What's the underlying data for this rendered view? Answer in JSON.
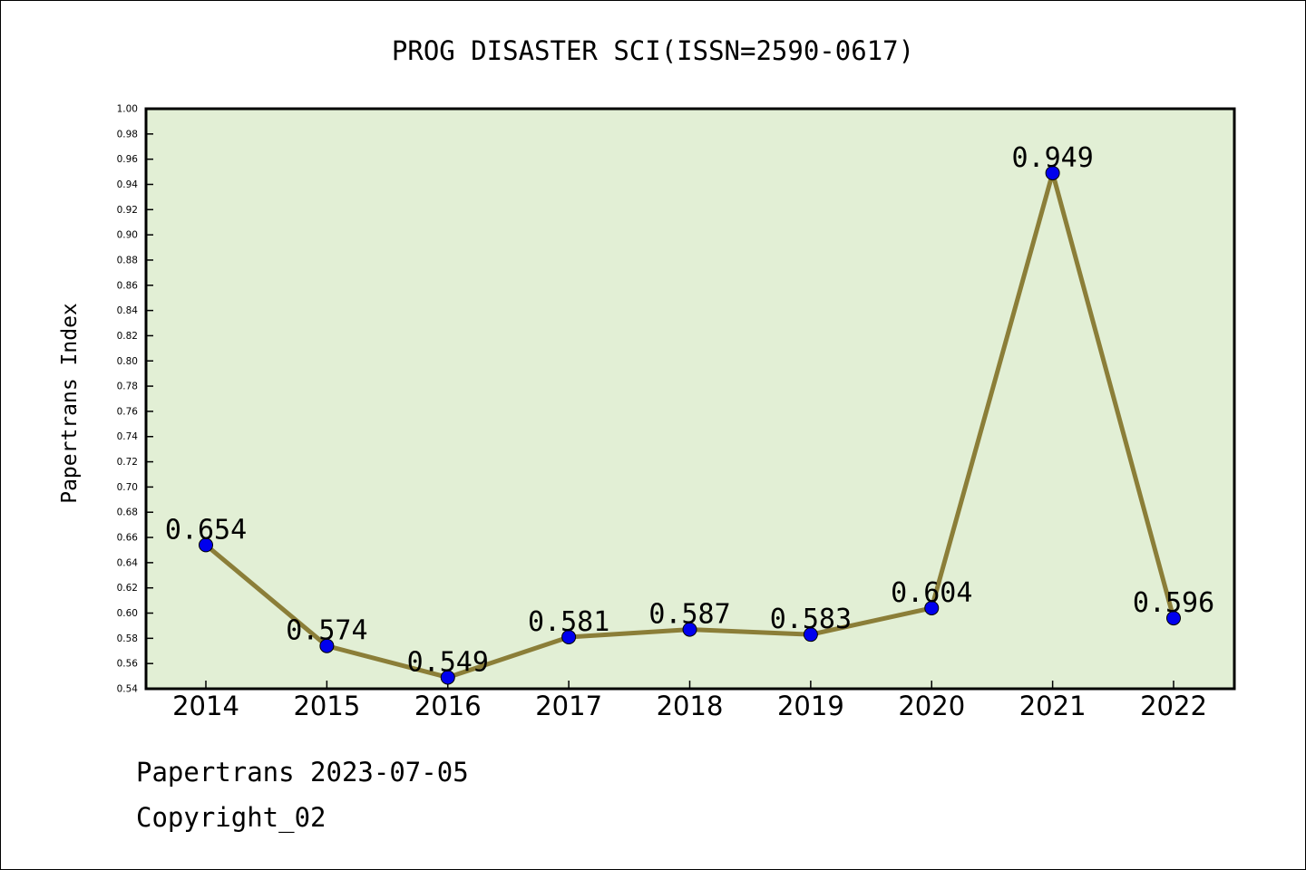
{
  "chart_data": {
    "type": "line",
    "title": "PROG DISASTER SCI(ISSN=2590-0617)",
    "xlabel": "",
    "ylabel": "Papertrans Index",
    "categories": [
      "2014",
      "2015",
      "2016",
      "2017",
      "2018",
      "2019",
      "2020",
      "2021",
      "2022"
    ],
    "series": [
      {
        "values": [
          0.654,
          0.574,
          0.549,
          0.581,
          0.587,
          0.583,
          0.604,
          0.949,
          0.596
        ]
      }
    ],
    "data_labels": [
      "0.654",
      "0.574",
      "0.549",
      "0.581",
      "0.587",
      "0.583",
      "0.604",
      "0.949",
      "0.596"
    ],
    "ylim": [
      0.54,
      1.0
    ],
    "ytick_step": 0.02,
    "grid": false,
    "colors": {
      "plot_background": "#e2efd5",
      "line": "#8b7e38",
      "marker": "#0000ee"
    }
  },
  "footer": {
    "date_line": "Papertrans 2023-07-05",
    "copyright": "Copyright_02"
  }
}
